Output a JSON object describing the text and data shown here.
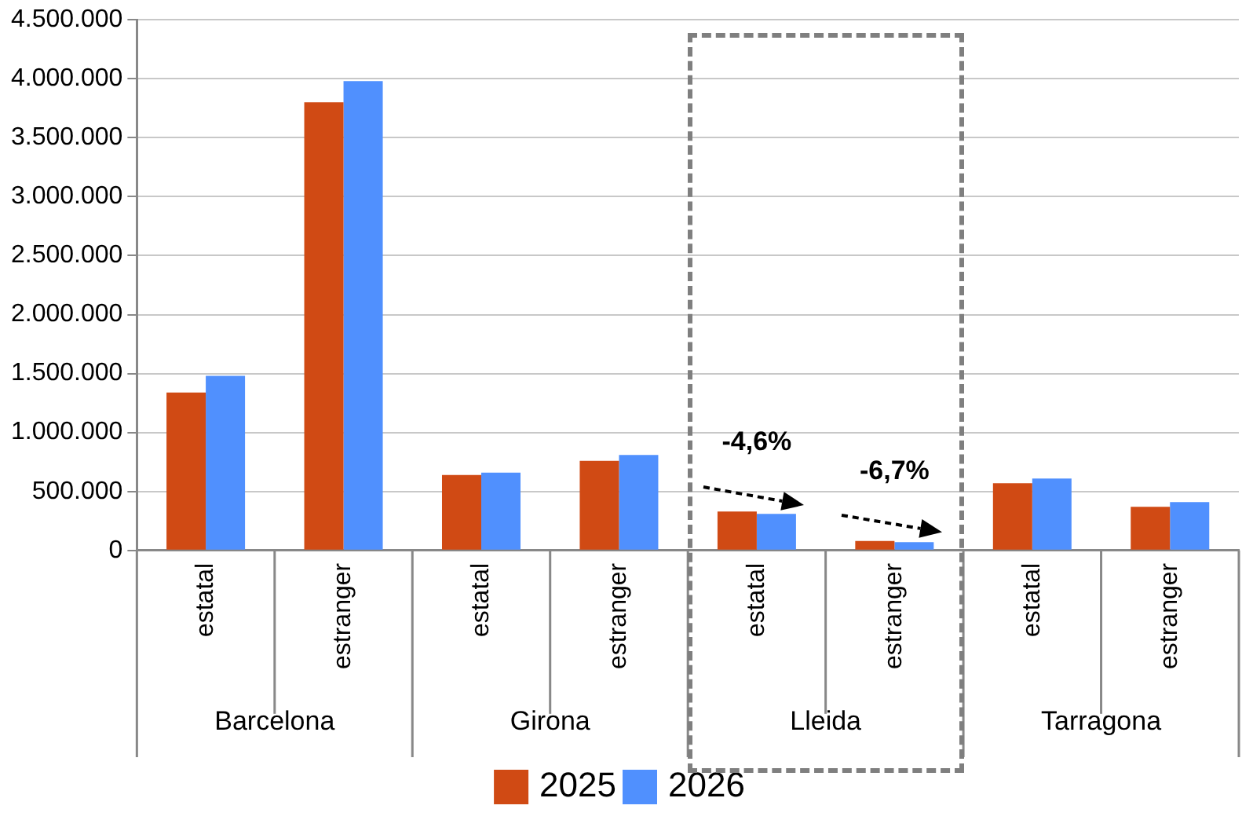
{
  "chart_data": {
    "type": "bar",
    "categories": [
      "estatal",
      "estranger",
      "estatal",
      "estranger",
      "estatal",
      "estranger",
      "estatal",
      "estranger"
    ],
    "series": [
      {
        "name": "2025",
        "color": "#d04a14",
        "values": [
          1340000,
          3800000,
          640000,
          760000,
          330000,
          80000,
          570000,
          370000
        ]
      },
      {
        "name": "2026",
        "color": "#5090fe",
        "values": [
          1480000,
          3980000,
          660000,
          810000,
          310000,
          70000,
          610000,
          410000
        ]
      }
    ],
    "ylim": [
      0,
      4500000
    ],
    "yticks": [
      0,
      {
        "value": 500000,
        "label": "500.000"
      },
      {
        "value": 1000000,
        "label": "1.000.000"
      },
      {
        "value": 1500000,
        "label": "1.500.000"
      },
      {
        "value": 2000000,
        "label": "2.000.000"
      },
      {
        "value": 2500000,
        "label": "2.500.000"
      },
      {
        "value": 3000000,
        "label": "3.000.000"
      },
      {
        "value": 3500000,
        "label": "3.500.000"
      },
      {
        "value": 4000000,
        "label": "4.000.000"
      },
      {
        "value": 4500000,
        "label": "4.500.000"
      }
    ],
    "grid": "y",
    "legend": "bottom",
    "annotations": [
      "Barcelona",
      "Girona",
      "Lleida",
      "Tarragona",
      "-4,6%",
      "-6,7%"
    ]
  }
}
